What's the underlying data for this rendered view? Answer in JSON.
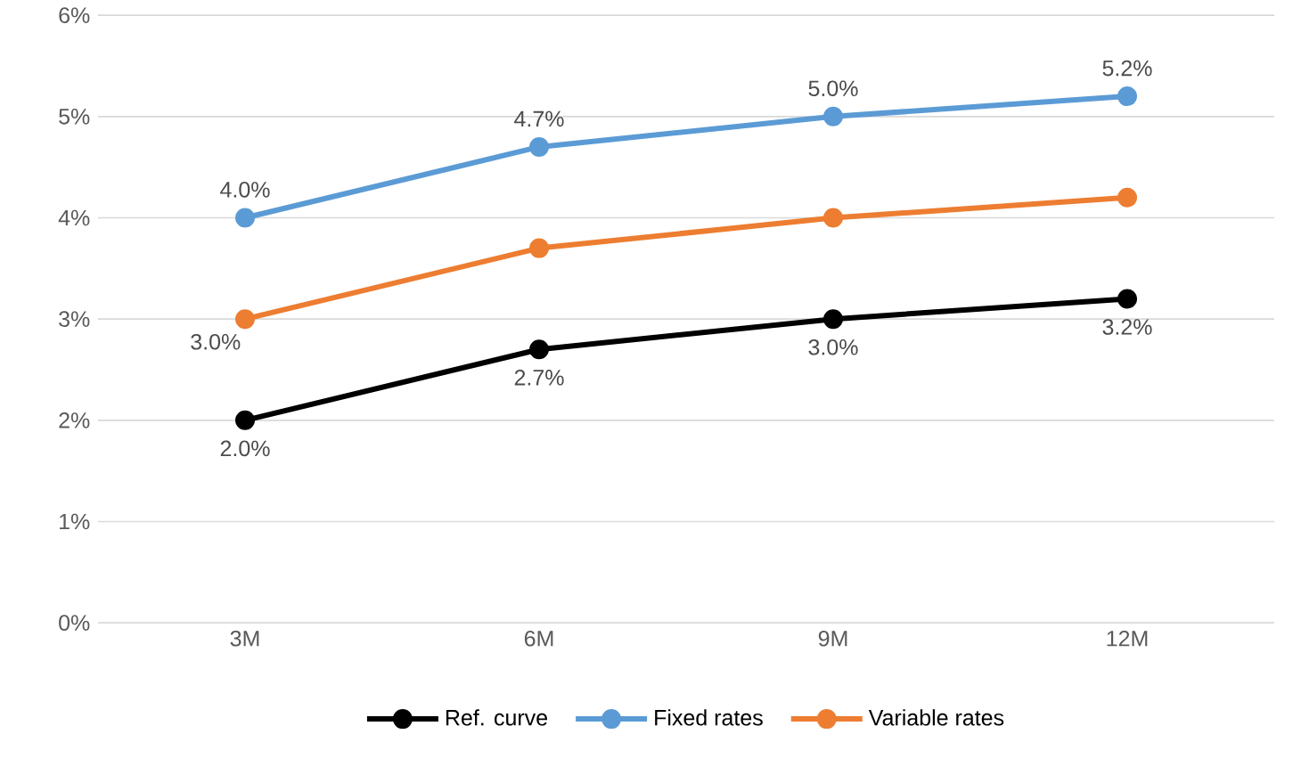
{
  "chart_data": {
    "type": "line",
    "categories": [
      "3M",
      "6M",
      "9M",
      "12M"
    ],
    "series": [
      {
        "name": "Ref. curve",
        "color": "#000000",
        "values": [
          2.0,
          2.7,
          3.0,
          3.2
        ],
        "value_labels": [
          "2.0%",
          "2.7%",
          "3.0%",
          "3.2%"
        ]
      },
      {
        "name": "Fixed rates",
        "color": "#5b9bd5",
        "values": [
          4.0,
          4.7,
          5.0,
          5.2
        ],
        "value_labels": [
          "4.0%",
          "4.7%",
          "5.0%",
          "5.2%"
        ]
      },
      {
        "name": "Variable rates",
        "color": "#ed7d31",
        "values": [
          3.0,
          3.7,
          4.0,
          4.2
        ],
        "value_labels": [
          "3.0%",
          null,
          null,
          null
        ]
      }
    ],
    "ylim": [
      0,
      6
    ],
    "yticks": [
      {
        "value": 0,
        "label": "0%"
      },
      {
        "value": 1,
        "label": "1%"
      },
      {
        "value": 2,
        "label": "2%"
      },
      {
        "value": 3,
        "label": "3%"
      },
      {
        "value": 4,
        "label": "4%"
      },
      {
        "value": 5,
        "label": "5%"
      },
      {
        "value": 6,
        "label": "6%"
      }
    ],
    "grid": "y",
    "legend": "bottom",
    "marker": "circle",
    "line_style": "solid"
  }
}
